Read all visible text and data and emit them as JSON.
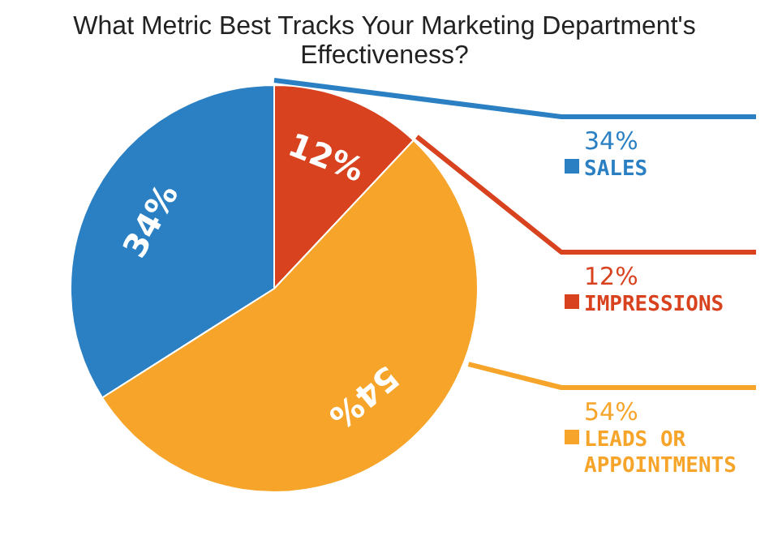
{
  "chart_data": {
    "type": "pie",
    "title": "What Metric Best Tracks Your Marketing Department's Effectiveness?",
    "categories": [
      "SALES",
      "IMPRESSIONS",
      "LEADS OR APPOINTMENTS"
    ],
    "values": [
      34,
      12,
      54
    ],
    "value_labels": [
      "34%",
      "12%",
      "54%"
    ],
    "colors": [
      "#2b80c3",
      "#d8421f",
      "#f6a52a"
    ],
    "legend": "right"
  }
}
